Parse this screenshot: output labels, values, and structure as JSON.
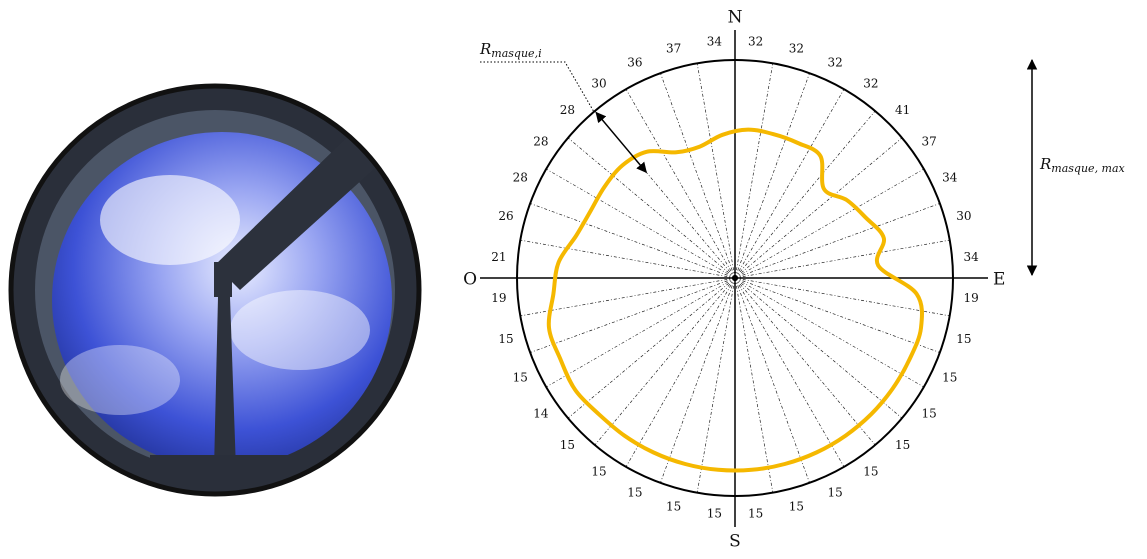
{
  "compass": {
    "north": "N",
    "east": "E",
    "south": "S",
    "west": "O"
  },
  "annotations": {
    "r_i": {
      "base": "R",
      "sub": "masque,i"
    },
    "r_max": {
      "base": "R",
      "sub": "masque, max"
    }
  },
  "mask_values": [
    32,
    32,
    32,
    32,
    41,
    37,
    34,
    30,
    34,
    19,
    15,
    15,
    15,
    15,
    15,
    15,
    15,
    15,
    15,
    15,
    15,
    15,
    15,
    14,
    15,
    15,
    19,
    21,
    26,
    28,
    28,
    28,
    30,
    36,
    37,
    34
  ]
}
